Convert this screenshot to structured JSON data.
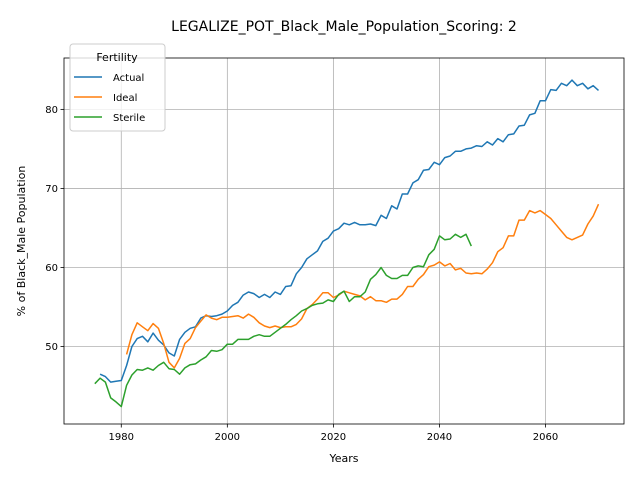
{
  "chart_data": {
    "type": "line",
    "title": "LEGALIZE_POT_Black_Male_Population_Scoring: 2",
    "xlabel": "Years",
    "ylabel": "% of Black_Male Population",
    "xlim": [
      1969.2,
      2074.8
    ],
    "ylim": [
      40.2,
      86.5
    ],
    "xticks": [
      1980,
      2000,
      2020,
      2040,
      2060
    ],
    "yticks": [
      50,
      60,
      70,
      80
    ],
    "grid": true,
    "legend": {
      "title": "Fertility",
      "placement": "top-left"
    },
    "series": [
      {
        "name": "Actual",
        "color": "#1f77b4",
        "points": [
          [
            1976,
            46.5
          ],
          [
            1977,
            46.2
          ],
          [
            1978,
            45.5
          ],
          [
            1979,
            45.6
          ],
          [
            1980,
            45.7
          ],
          [
            1981,
            47.6
          ],
          [
            1982,
            50.0
          ],
          [
            1983,
            51.0
          ],
          [
            1984,
            51.3
          ],
          [
            1985,
            50.6
          ],
          [
            1986,
            51.7
          ],
          [
            1987,
            50.8
          ],
          [
            1988,
            50.2
          ],
          [
            1989,
            49.2
          ],
          [
            1990,
            48.8
          ],
          [
            1991,
            50.9
          ],
          [
            1992,
            51.8
          ],
          [
            1993,
            52.3
          ],
          [
            1994,
            52.5
          ],
          [
            1995,
            53.6
          ],
          [
            1996,
            53.9
          ],
          [
            1997,
            53.8
          ],
          [
            1998,
            53.9
          ],
          [
            1999,
            54.1
          ],
          [
            2000,
            54.5
          ],
          [
            2001,
            55.2
          ],
          [
            2002,
            55.6
          ],
          [
            2003,
            56.5
          ],
          [
            2004,
            56.9
          ],
          [
            2005,
            56.7
          ],
          [
            2006,
            56.2
          ],
          [
            2007,
            56.6
          ],
          [
            2008,
            56.2
          ],
          [
            2009,
            56.9
          ],
          [
            2010,
            56.6
          ],
          [
            2011,
            57.6
          ],
          [
            2012,
            57.7
          ],
          [
            2013,
            59.2
          ],
          [
            2014,
            60.0
          ],
          [
            2015,
            61.1
          ],
          [
            2016,
            61.6
          ],
          [
            2017,
            62.1
          ],
          [
            2018,
            63.3
          ],
          [
            2019,
            63.7
          ],
          [
            2020,
            64.6
          ],
          [
            2021,
            64.9
          ],
          [
            2022,
            65.6
          ],
          [
            2023,
            65.4
          ],
          [
            2024,
            65.7
          ],
          [
            2025,
            65.4
          ],
          [
            2026,
            65.4
          ],
          [
            2027,
            65.5
          ],
          [
            2028,
            65.3
          ],
          [
            2029,
            66.6
          ],
          [
            2030,
            66.2
          ],
          [
            2031,
            67.8
          ],
          [
            2032,
            67.4
          ],
          [
            2033,
            69.3
          ],
          [
            2034,
            69.3
          ],
          [
            2035,
            70.7
          ],
          [
            2036,
            71.1
          ],
          [
            2037,
            72.3
          ],
          [
            2038,
            72.4
          ],
          [
            2039,
            73.3
          ],
          [
            2040,
            73.0
          ],
          [
            2041,
            73.9
          ],
          [
            2042,
            74.1
          ],
          [
            2043,
            74.7
          ],
          [
            2044,
            74.7
          ],
          [
            2045,
            75.0
          ],
          [
            2046,
            75.1
          ],
          [
            2047,
            75.4
          ],
          [
            2048,
            75.3
          ],
          [
            2049,
            75.9
          ],
          [
            2050,
            75.5
          ],
          [
            2051,
            76.3
          ],
          [
            2052,
            75.9
          ],
          [
            2053,
            76.8
          ],
          [
            2054,
            76.9
          ],
          [
            2055,
            77.9
          ],
          [
            2056,
            78.0
          ],
          [
            2057,
            79.3
          ],
          [
            2058,
            79.5
          ],
          [
            2059,
            81.1
          ],
          [
            2060,
            81.1
          ],
          [
            2061,
            82.5
          ],
          [
            2062,
            82.4
          ],
          [
            2063,
            83.3
          ],
          [
            2064,
            83.0
          ],
          [
            2065,
            83.7
          ],
          [
            2066,
            83.0
          ],
          [
            2067,
            83.3
          ],
          [
            2068,
            82.6
          ],
          [
            2069,
            83.0
          ],
          [
            2070,
            82.4
          ]
        ]
      },
      {
        "name": "Ideal",
        "color": "#ff7f0e",
        "points": [
          [
            1981,
            49.0
          ],
          [
            1982,
            51.5
          ],
          [
            1983,
            53.0
          ],
          [
            1984,
            52.5
          ],
          [
            1985,
            52.0
          ],
          [
            1986,
            52.9
          ],
          [
            1987,
            52.3
          ],
          [
            1988,
            50.4
          ],
          [
            1989,
            48.0
          ],
          [
            1990,
            47.3
          ],
          [
            1991,
            48.5
          ],
          [
            1992,
            50.4
          ],
          [
            1993,
            51.0
          ],
          [
            1994,
            52.4
          ],
          [
            1995,
            53.2
          ],
          [
            1996,
            54.0
          ],
          [
            1997,
            53.6
          ],
          [
            1998,
            53.4
          ],
          [
            1999,
            53.7
          ],
          [
            2000,
            53.7
          ],
          [
            2001,
            53.8
          ],
          [
            2002,
            53.9
          ],
          [
            2003,
            53.6
          ],
          [
            2004,
            54.1
          ],
          [
            2005,
            53.7
          ],
          [
            2006,
            53.0
          ],
          [
            2007,
            52.6
          ],
          [
            2008,
            52.4
          ],
          [
            2009,
            52.6
          ],
          [
            2010,
            52.4
          ],
          [
            2011,
            52.5
          ],
          [
            2012,
            52.5
          ],
          [
            2013,
            52.8
          ],
          [
            2014,
            53.5
          ],
          [
            2015,
            54.8
          ],
          [
            2016,
            55.3
          ],
          [
            2017,
            56.0
          ],
          [
            2018,
            56.8
          ],
          [
            2019,
            56.8
          ],
          [
            2020,
            56.2
          ],
          [
            2021,
            56.5
          ],
          [
            2022,
            57.0
          ],
          [
            2023,
            56.8
          ],
          [
            2024,
            56.6
          ],
          [
            2025,
            56.4
          ],
          [
            2026,
            55.9
          ],
          [
            2027,
            56.3
          ],
          [
            2028,
            55.8
          ],
          [
            2029,
            55.8
          ],
          [
            2030,
            55.6
          ],
          [
            2031,
            56.0
          ],
          [
            2032,
            56.0
          ],
          [
            2033,
            56.6
          ],
          [
            2034,
            57.6
          ],
          [
            2035,
            57.6
          ],
          [
            2036,
            58.5
          ],
          [
            2037,
            59.1
          ],
          [
            2038,
            60.1
          ],
          [
            2039,
            60.3
          ],
          [
            2040,
            60.7
          ],
          [
            2041,
            60.2
          ],
          [
            2042,
            60.5
          ],
          [
            2043,
            59.7
          ],
          [
            2044,
            59.9
          ],
          [
            2045,
            59.3
          ],
          [
            2046,
            59.2
          ],
          [
            2047,
            59.3
          ],
          [
            2048,
            59.2
          ],
          [
            2049,
            59.8
          ],
          [
            2050,
            60.6
          ],
          [
            2051,
            62.0
          ],
          [
            2052,
            62.5
          ],
          [
            2053,
            64.0
          ],
          [
            2054,
            64.0
          ],
          [
            2055,
            66.0
          ],
          [
            2056,
            66.0
          ],
          [
            2057,
            67.2
          ],
          [
            2058,
            66.9
          ],
          [
            2059,
            67.2
          ],
          [
            2060,
            66.7
          ],
          [
            2061,
            66.2
          ],
          [
            2062,
            65.4
          ],
          [
            2063,
            64.6
          ],
          [
            2064,
            63.8
          ],
          [
            2065,
            63.5
          ],
          [
            2066,
            63.8
          ],
          [
            2067,
            64.1
          ],
          [
            2068,
            65.5
          ],
          [
            2069,
            66.5
          ],
          [
            2070,
            68.0
          ]
        ]
      },
      {
        "name": "Sterile",
        "color": "#2ca02c",
        "points": [
          [
            1975,
            45.3
          ],
          [
            1976,
            46.0
          ],
          [
            1977,
            45.5
          ],
          [
            1978,
            43.5
          ],
          [
            1979,
            43.0
          ],
          [
            1980,
            42.4
          ],
          [
            1981,
            45.1
          ],
          [
            1982,
            46.4
          ],
          [
            1983,
            47.1
          ],
          [
            1984,
            47.0
          ],
          [
            1985,
            47.3
          ],
          [
            1986,
            47.0
          ],
          [
            1987,
            47.6
          ],
          [
            1988,
            48.0
          ],
          [
            1989,
            47.2
          ],
          [
            1990,
            47.1
          ],
          [
            1991,
            46.5
          ],
          [
            1992,
            47.3
          ],
          [
            1993,
            47.7
          ],
          [
            1994,
            47.8
          ],
          [
            1995,
            48.3
          ],
          [
            1996,
            48.7
          ],
          [
            1997,
            49.5
          ],
          [
            1998,
            49.4
          ],
          [
            1999,
            49.6
          ],
          [
            2000,
            50.3
          ],
          [
            2001,
            50.3
          ],
          [
            2002,
            50.9
          ],
          [
            2003,
            50.9
          ],
          [
            2004,
            50.9
          ],
          [
            2005,
            51.3
          ],
          [
            2006,
            51.5
          ],
          [
            2007,
            51.3
          ],
          [
            2008,
            51.3
          ],
          [
            2009,
            51.8
          ],
          [
            2010,
            52.3
          ],
          [
            2011,
            52.8
          ],
          [
            2012,
            53.4
          ],
          [
            2013,
            53.9
          ],
          [
            2014,
            54.5
          ],
          [
            2015,
            54.8
          ],
          [
            2016,
            55.2
          ],
          [
            2017,
            55.4
          ],
          [
            2018,
            55.5
          ],
          [
            2019,
            55.9
          ],
          [
            2020,
            55.7
          ],
          [
            2021,
            56.6
          ],
          [
            2022,
            57.0
          ],
          [
            2023,
            55.7
          ],
          [
            2024,
            56.3
          ],
          [
            2025,
            56.3
          ],
          [
            2026,
            56.9
          ],
          [
            2027,
            58.5
          ],
          [
            2028,
            59.1
          ],
          [
            2029,
            60.0
          ],
          [
            2030,
            59.0
          ],
          [
            2031,
            58.6
          ],
          [
            2032,
            58.6
          ],
          [
            2033,
            59.0
          ],
          [
            2034,
            59.0
          ],
          [
            2035,
            60.0
          ],
          [
            2036,
            60.2
          ],
          [
            2037,
            60.1
          ],
          [
            2038,
            61.6
          ],
          [
            2039,
            62.3
          ],
          [
            2040,
            64.0
          ],
          [
            2041,
            63.5
          ],
          [
            2042,
            63.6
          ],
          [
            2043,
            64.2
          ],
          [
            2044,
            63.8
          ],
          [
            2045,
            64.2
          ],
          [
            2046,
            62.7
          ]
        ]
      }
    ]
  }
}
